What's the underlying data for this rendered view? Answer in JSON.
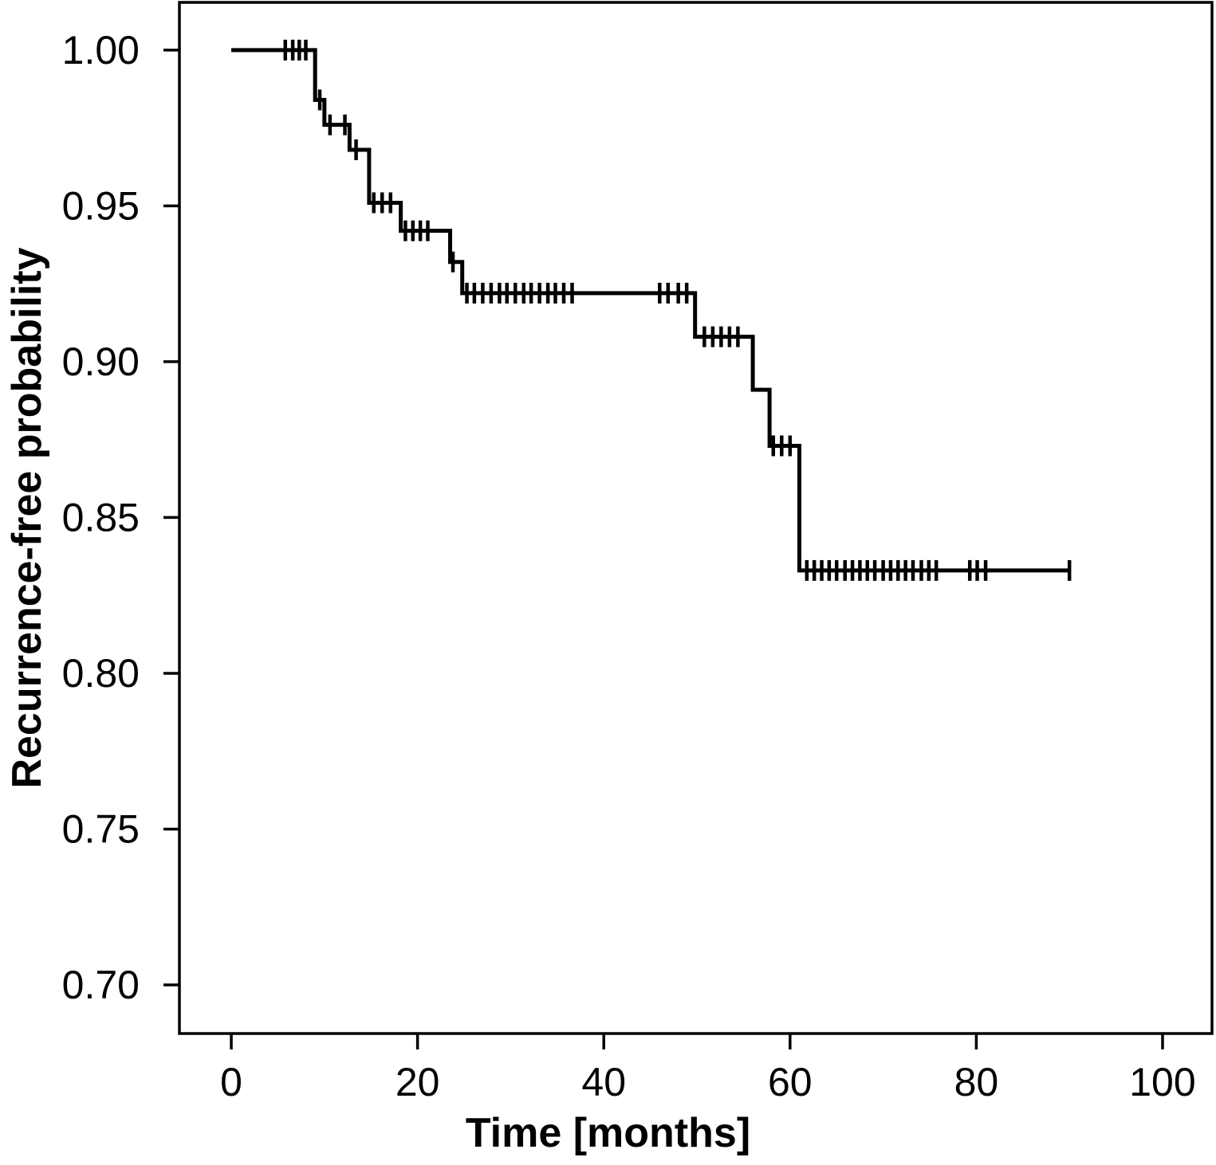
{
  "figure": {
    "background": "#ffffff",
    "foreground": "#000000"
  },
  "chart_data": {
    "type": "line",
    "subtype": "kaplan_meier_step_function",
    "title": "",
    "xlabel": "Time [months]",
    "ylabel": "Recurrence-free probability",
    "xlim": [
      -5.57,
      105.31
    ],
    "ylim": [
      0.6844,
      1.0153
    ],
    "grid": false,
    "legend_position": "none",
    "line_color": "#000000",
    "background": "#ffffff",
    "xticks": [
      {
        "value": 0,
        "label": "0"
      },
      {
        "value": 20,
        "label": "20"
      },
      {
        "value": 40,
        "label": "40"
      },
      {
        "value": 60,
        "label": "60"
      },
      {
        "value": 80,
        "label": "80"
      },
      {
        "value": 100,
        "label": "100"
      }
    ],
    "yticks": [
      {
        "value": 1.0,
        "label": "1.00"
      },
      {
        "value": 0.95,
        "label": "0.95"
      },
      {
        "value": 0.9,
        "label": "0.90"
      },
      {
        "value": 0.85,
        "label": "0.85"
      },
      {
        "value": 0.8,
        "label": "0.80"
      },
      {
        "value": 0.75,
        "label": "0.75"
      },
      {
        "value": 0.7,
        "label": "0.70"
      }
    ],
    "series": [
      {
        "name": "Recurrence-free probability",
        "steps": [
          [
            0,
            1.0
          ],
          [
            9,
            0.984
          ],
          [
            10,
            0.976
          ],
          [
            12.7,
            0.968
          ],
          [
            14.8,
            0.951
          ],
          [
            18.2,
            0.942
          ],
          [
            23.5,
            0.932
          ],
          [
            24.8,
            0.922
          ],
          [
            49.8,
            0.908
          ],
          [
            56,
            0.891
          ],
          [
            57.8,
            0.873
          ],
          [
            61,
            0.833
          ]
        ],
        "end_x": 90,
        "censor_marks": [
          [
            5.8,
            1.0
          ],
          [
            6.6,
            1.0
          ],
          [
            7.3,
            1.0
          ],
          [
            8.0,
            1.0
          ],
          [
            9.5,
            0.984
          ],
          [
            10.6,
            0.976
          ],
          [
            12.2,
            0.976
          ],
          [
            13.4,
            0.968
          ],
          [
            15.3,
            0.951
          ],
          [
            16.2,
            0.951
          ],
          [
            17.1,
            0.951
          ],
          [
            18.7,
            0.942
          ],
          [
            19.5,
            0.942
          ],
          [
            20.3,
            0.942
          ],
          [
            21.1,
            0.942
          ],
          [
            23.8,
            0.932
          ],
          [
            25.3,
            0.922
          ],
          [
            26.1,
            0.922
          ],
          [
            27.0,
            0.922
          ],
          [
            27.9,
            0.922
          ],
          [
            28.8,
            0.922
          ],
          [
            29.6,
            0.922
          ],
          [
            30.5,
            0.922
          ],
          [
            31.4,
            0.922
          ],
          [
            32.2,
            0.922
          ],
          [
            33.1,
            0.922
          ],
          [
            34.0,
            0.922
          ],
          [
            34.8,
            0.922
          ],
          [
            35.7,
            0.922
          ],
          [
            36.6,
            0.922
          ],
          [
            46.0,
            0.922
          ],
          [
            46.9,
            0.922
          ],
          [
            48.0,
            0.922
          ],
          [
            48.9,
            0.922
          ],
          [
            50.8,
            0.908
          ],
          [
            51.7,
            0.908
          ],
          [
            52.6,
            0.908
          ],
          [
            53.5,
            0.908
          ],
          [
            54.4,
            0.908
          ],
          [
            58.2,
            0.873
          ],
          [
            59.1,
            0.873
          ],
          [
            60.0,
            0.873
          ],
          [
            61.8,
            0.833
          ],
          [
            62.6,
            0.833
          ],
          [
            63.4,
            0.833
          ],
          [
            64.2,
            0.833
          ],
          [
            65.0,
            0.833
          ],
          [
            65.9,
            0.833
          ],
          [
            66.7,
            0.833
          ],
          [
            67.5,
            0.833
          ],
          [
            68.3,
            0.833
          ],
          [
            69.1,
            0.833
          ],
          [
            70.0,
            0.833
          ],
          [
            70.8,
            0.833
          ],
          [
            71.6,
            0.833
          ],
          [
            72.4,
            0.833
          ],
          [
            73.2,
            0.833
          ],
          [
            74.1,
            0.833
          ],
          [
            74.9,
            0.833
          ],
          [
            75.7,
            0.833
          ],
          [
            79.3,
            0.833
          ],
          [
            80.1,
            0.833
          ],
          [
            81.0,
            0.833
          ],
          [
            90,
            0.833
          ]
        ]
      }
    ]
  }
}
